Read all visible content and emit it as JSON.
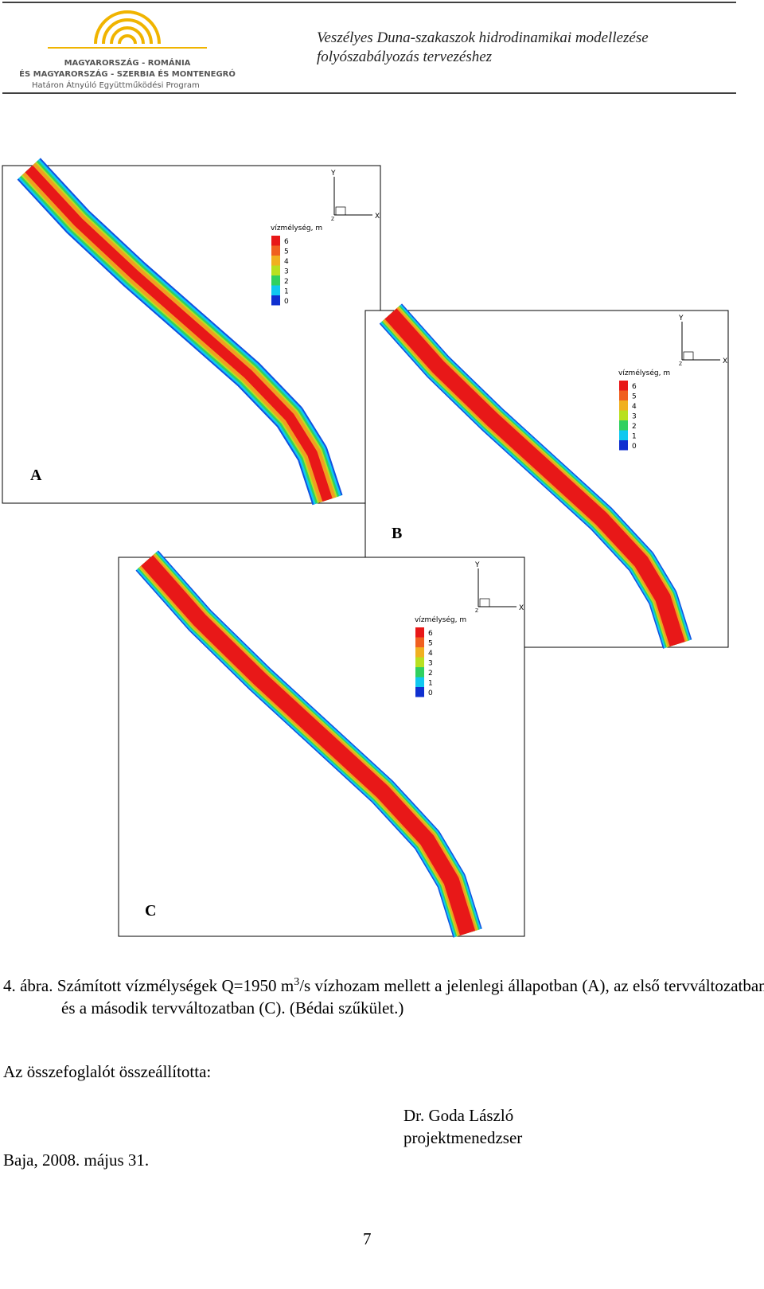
{
  "header": {
    "logo_lines": [
      "MAGYARORSZÁG - ROMÁNIA",
      "ÉS MAGYARORSZÁG - SZERBIA ÉS MONTENEGRÓ",
      "Határon Átnyúló Együttműködési Program"
    ],
    "title_lines": [
      "Veszélyes Duna-szakaszok hidrodinamikai modellezése",
      "folyószabályozás tervezéshez"
    ]
  },
  "figure": {
    "panels": [
      {
        "label": "A",
        "legend_title": "vízmélység, m",
        "legend_levels": [
          "6",
          "5",
          "4",
          "3",
          "2",
          "1",
          "0"
        ],
        "axis_labels": [
          "Y",
          "X",
          "Z"
        ]
      },
      {
        "label": "B",
        "legend_title": "vízmélység, m",
        "legend_levels": [
          "6",
          "5",
          "4",
          "3",
          "2",
          "1",
          "0"
        ],
        "axis_labels": [
          "Y",
          "X",
          "Z"
        ]
      },
      {
        "label": "C",
        "legend_title": "vízmélység, m",
        "legend_levels": [
          "6",
          "5",
          "4",
          "3",
          "2",
          "1",
          "0"
        ],
        "axis_labels": [
          "Y",
          "X",
          "Z"
        ]
      }
    ]
  },
  "caption": {
    "number": "4. ábra.",
    "text_before": "Számított vízmélységek Q=1950 m",
    "superscript": "3",
    "text_after": "/s vízhozam mellett a jelenlegi állapotban (A), az első tervváltozatban (B) és a második tervváltozatban (C). (Bédai szűkület.)"
  },
  "signature": {
    "intro": "Az összefoglalót összeállította:",
    "name": "Dr. Goda László",
    "role": "projektmenedzser",
    "place_date": "Baja, 2008. május 31."
  },
  "page_number": "7"
}
